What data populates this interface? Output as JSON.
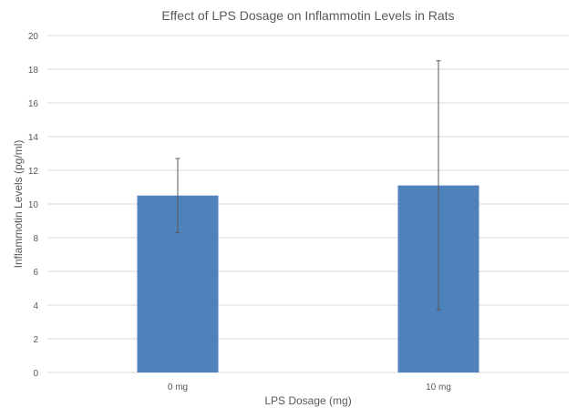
{
  "chart_data": {
    "type": "bar",
    "title": "Effect of LPS Dosage on Inflammotin Levels in Rats",
    "xlabel": "LPS Dosage (mg)",
    "ylabel": "Inflammotin  Levels (pg/ml)",
    "categories": [
      "0 mg",
      "10 mg"
    ],
    "values": [
      10.5,
      11.1
    ],
    "error_low": [
      8.3,
      3.7
    ],
    "error_high": [
      12.7,
      18.5
    ],
    "ylim": [
      0,
      20
    ],
    "yticks": [
      0,
      2,
      4,
      6,
      8,
      10,
      12,
      14,
      16,
      18,
      20
    ],
    "grid": true,
    "legend": "none",
    "bar_color": "#4F81BD",
    "grid_color": "#D9D9D9",
    "error_bar_color": "#595959"
  }
}
